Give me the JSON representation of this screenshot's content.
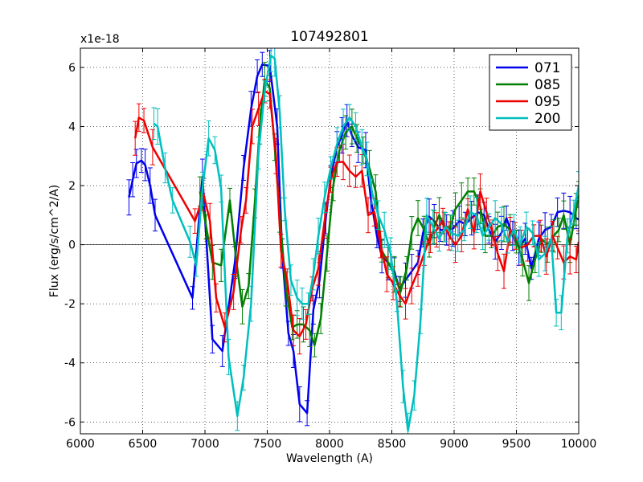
{
  "chart_data": {
    "type": "line",
    "title": "107492801",
    "xlabel": "Wavelength (A)",
    "ylabel": "Flux (erg/s/cm^2/A)",
    "offset_label": "x1e-18",
    "xlim": [
      6000,
      10000
    ],
    "ylim": [
      -6.4,
      6.65
    ],
    "xticks": [
      6000,
      6500,
      7000,
      7500,
      8000,
      8500,
      9000,
      9500,
      10000
    ],
    "xtick_labels": [
      "6000",
      "6500",
      "7000",
      "7500",
      "8000",
      "8500",
      "9000",
      "9500",
      "10000"
    ],
    "yticks": [
      -6,
      -4,
      -2,
      0,
      2,
      4,
      6
    ],
    "ytick_labels": [
      "-6",
      "-4",
      "-2",
      "0",
      "2",
      "4",
      "6"
    ],
    "grid": true,
    "legend_position": "top-right",
    "series": [
      {
        "name": "071",
        "color": "#0000ee",
        "x": [
          6390,
          6420,
          6450,
          6490,
          6520,
          6560,
          6600,
          6900,
          6980,
          7060,
          7140,
          7240,
          7310,
          7370,
          7420,
          7460,
          7520,
          7580,
          7620,
          7670,
          7710,
          7760,
          7820,
          7870,
          7920,
          7970,
          8010,
          8060,
          8100,
          8140,
          8180,
          8230,
          8290,
          8330,
          8380,
          8420,
          8470,
          8520,
          8560,
          8610,
          8660,
          8710,
          8750,
          8800,
          8840,
          8890,
          8940,
          8990,
          9040,
          9090,
          9140,
          9190,
          9240,
          9280,
          9330,
          9380,
          9420,
          9470,
          9520,
          9570,
          9620,
          9680,
          9730,
          9780,
          9830,
          9880,
          9930,
          9980,
          10000
        ],
        "y": [
          1.6,
          2.2,
          2.75,
          2.85,
          2.7,
          2.0,
          1.0,
          -1.8,
          2.3,
          -3.2,
          -3.6,
          -0.6,
          2.6,
          4.6,
          5.7,
          6.1,
          6.05,
          4.0,
          -0.3,
          -3.0,
          -3.6,
          -5.4,
          -5.7,
          -2.2,
          -1.2,
          0.9,
          2.3,
          3.3,
          3.7,
          4.2,
          3.7,
          3.3,
          3.2,
          1.6,
          0.3,
          -0.4,
          -0.6,
          -0.9,
          -1.5,
          -1.2,
          -0.9,
          -0.6,
          0.4,
          0.95,
          0.8,
          0.5,
          0.5,
          0.55,
          0.8,
          0.7,
          0.9,
          1.1,
          1.0,
          0.5,
          0.1,
          0.4,
          0.9,
          0.3,
          -0.1,
          0.2,
          -0.8,
          0.2,
          0.5,
          0.6,
          1.1,
          1.15,
          1.1,
          0.9,
          0.85
        ]
      },
      {
        "name": "085",
        "color": "#007f00",
        "x": [
          6960,
          7010,
          7060,
          7130,
          7200,
          7250,
          7300,
          7350,
          7400,
          7440,
          7480,
          7520,
          7560,
          7600,
          7650,
          7700,
          7740,
          7790,
          7840,
          7880,
          7930,
          7980,
          8030,
          8080,
          8130,
          8180,
          8220,
          8270,
          8320,
          8370,
          8420,
          8470,
          8520,
          8570,
          8620,
          8660,
          8710,
          8760,
          8800,
          8840,
          8880,
          8920,
          8970,
          9010,
          9060,
          9110,
          9160,
          9210,
          9250,
          9300,
          9350,
          9400,
          9450,
          9500,
          9550,
          9600,
          9650,
          9700,
          9750,
          9800,
          9840,
          9880,
          9930,
          9980,
          10000
        ],
        "y": [
          1.8,
          0.6,
          -0.6,
          -0.7,
          1.5,
          -0.5,
          -2.1,
          -1.4,
          1.4,
          4.0,
          5.6,
          5.3,
          3.3,
          1.0,
          -1.5,
          -2.8,
          -2.7,
          -2.7,
          -2.9,
          -3.4,
          -2.5,
          -0.3,
          2.0,
          3.2,
          3.8,
          4.0,
          3.6,
          3.2,
          2.6,
          1.8,
          -0.2,
          -0.6,
          -1.0,
          -1.6,
          -0.8,
          0.4,
          0.9,
          0.5,
          0.0,
          0.6,
          1.0,
          0.6,
          0.6,
          1.2,
          1.5,
          1.8,
          1.8,
          1.3,
          0.3,
          0.3,
          0.6,
          0.7,
          0.5,
          0.1,
          -0.5,
          -1.3,
          -0.5,
          0.2,
          0.0,
          0.3,
          0.5,
          1.0,
          0.0,
          1.2,
          1.7
        ]
      },
      {
        "name": "095",
        "color": "#ee0000",
        "x": [
          6440,
          6470,
          6510,
          6580,
          6920,
          6990,
          7040,
          7090,
          7160,
          7230,
          7290,
          7330,
          7380,
          7430,
          7480,
          7520,
          7570,
          7610,
          7660,
          7710,
          7760,
          7810,
          7860,
          7910,
          7960,
          8010,
          8060,
          8110,
          8160,
          8210,
          8260,
          8310,
          8360,
          8410,
          8460,
          8510,
          8560,
          8610,
          8660,
          8710,
          8760,
          8810,
          8860,
          8910,
          8960,
          9010,
          9060,
          9110,
          9160,
          9210,
          9260,
          9310,
          9350,
          9400,
          9450,
          9490,
          9540,
          9590,
          9640,
          9690,
          9740,
          9790,
          9830,
          9880,
          9930,
          9980,
          10000
        ],
        "y": [
          3.6,
          4.3,
          4.2,
          3.3,
          0.8,
          1.7,
          0.8,
          -1.8,
          -2.8,
          -1.6,
          0.5,
          1.5,
          4.0,
          4.6,
          5.2,
          5.1,
          3.0,
          -0.2,
          -1.2,
          -2.9,
          -3.1,
          -2.7,
          -1.5,
          -0.8,
          0.8,
          2.2,
          2.8,
          2.8,
          2.5,
          2.3,
          2.5,
          1.0,
          1.1,
          0.0,
          -1.0,
          -1.3,
          -1.7,
          -2.0,
          -1.4,
          -0.9,
          -0.3,
          0.3,
          0.5,
          0.8,
          0.3,
          0.0,
          0.3,
          1.2,
          0.4,
          1.8,
          1.1,
          0.4,
          -0.3,
          -0.9,
          0.5,
          0.3,
          -0.1,
          0.0,
          0.3,
          0.3,
          -0.4,
          0.3,
          -0.1,
          -0.6,
          -0.4,
          -0.5,
          0.1
        ]
      },
      {
        "name": "200",
        "color": "#00bfbf",
        "x": [
          6590,
          6620,
          6680,
          6740,
          6880,
          6930,
          6980,
          7030,
          7080,
          7130,
          7190,
          7260,
          7310,
          7370,
          7430,
          7480,
          7530,
          7560,
          7600,
          7640,
          7690,
          7740,
          7780,
          7830,
          7870,
          7910,
          7960,
          8010,
          8060,
          8110,
          8160,
          8210,
          8260,
          8300,
          8340,
          8390,
          8440,
          8490,
          8540,
          8590,
          8630,
          8680,
          8730,
          8780,
          8830,
          8880,
          8930,
          8980,
          9030,
          9080,
          9130,
          9180,
          9230,
          9280,
          9330,
          9380,
          9430,
          9480,
          9530,
          9580,
          9630,
          9680,
          9730,
          9780,
          9820,
          9860,
          9910,
          9960,
          10000
        ],
        "y": [
          4.1,
          4.0,
          2.6,
          1.5,
          0.1,
          -0.7,
          1.9,
          3.6,
          3.2,
          1.9,
          -3.8,
          -5.8,
          -4.5,
          -2.0,
          3.1,
          5.2,
          6.4,
          6.3,
          4.5,
          1.2,
          -1.2,
          -1.8,
          -2.0,
          -2.0,
          -1.0,
          0.3,
          1.6,
          2.6,
          3.4,
          4.0,
          4.3,
          4.0,
          3.3,
          2.9,
          1.8,
          1.0,
          0.5,
          -0.3,
          -1.9,
          -4.8,
          -6.3,
          -5.1,
          -2.6,
          1.0,
          0.6,
          0.2,
          0.6,
          0.4,
          0.3,
          0.5,
          1.1,
          1.0,
          0.3,
          0.6,
          0.9,
          0.7,
          0.1,
          0.5,
          0.0,
          0.6,
          0.4,
          -0.5,
          -0.3,
          0.2,
          -2.3,
          -2.3,
          0.3,
          1.1,
          2.0
        ]
      }
    ]
  }
}
